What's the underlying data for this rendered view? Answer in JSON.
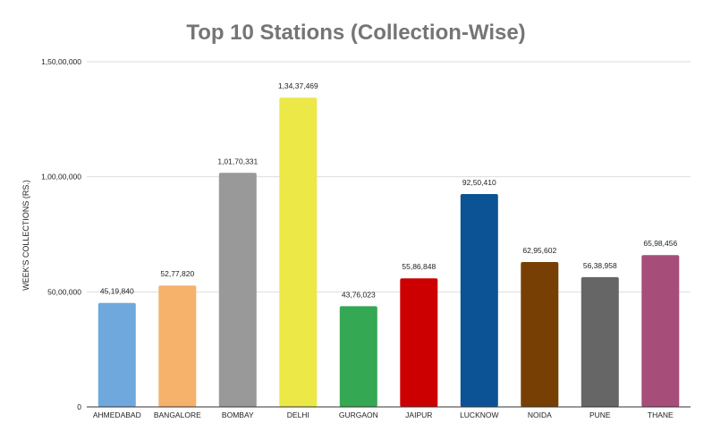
{
  "chart_data": {
    "type": "bar",
    "title": "Top 10 Stations (Collection-Wise)",
    "xlabel": "",
    "ylabel": "WEEK'S COLLECTIONS (RS.)",
    "ylim": [
      0,
      150000000
    ],
    "yticks": [
      0,
      50000000,
      100000000,
      150000000
    ],
    "ytick_labels": [
      "0",
      "50,00,000",
      "1,00,00,000",
      "1,50,00,000"
    ],
    "grid": true,
    "legend": "none",
    "categories": [
      "AHMEDABAD",
      "BANGALORE",
      "BOMBAY",
      "DELHI",
      "GURGAON",
      "JAIPUR",
      "LUCKNOW",
      "NOIDA",
      "PUNE",
      "THANE"
    ],
    "values": [
      45198400,
      52778200,
      101703310,
      134374690,
      43760230,
      55868480,
      92504100,
      62956020,
      56389580,
      65984560
    ],
    "data_labels": [
      "45,19,840",
      "52,77,820",
      "1,01,70,331",
      "1,34,37,469",
      "43,76,023",
      "55,86,848",
      "92,50,410",
      "62,95,602",
      "56,38,958",
      "65,98,456"
    ],
    "colors": [
      "#6fa8dc",
      "#f6b26b",
      "#999999",
      "#ebe848",
      "#34a853",
      "#cc0000",
      "#0b5394",
      "#783f04",
      "#666666",
      "#a64d79"
    ]
  }
}
